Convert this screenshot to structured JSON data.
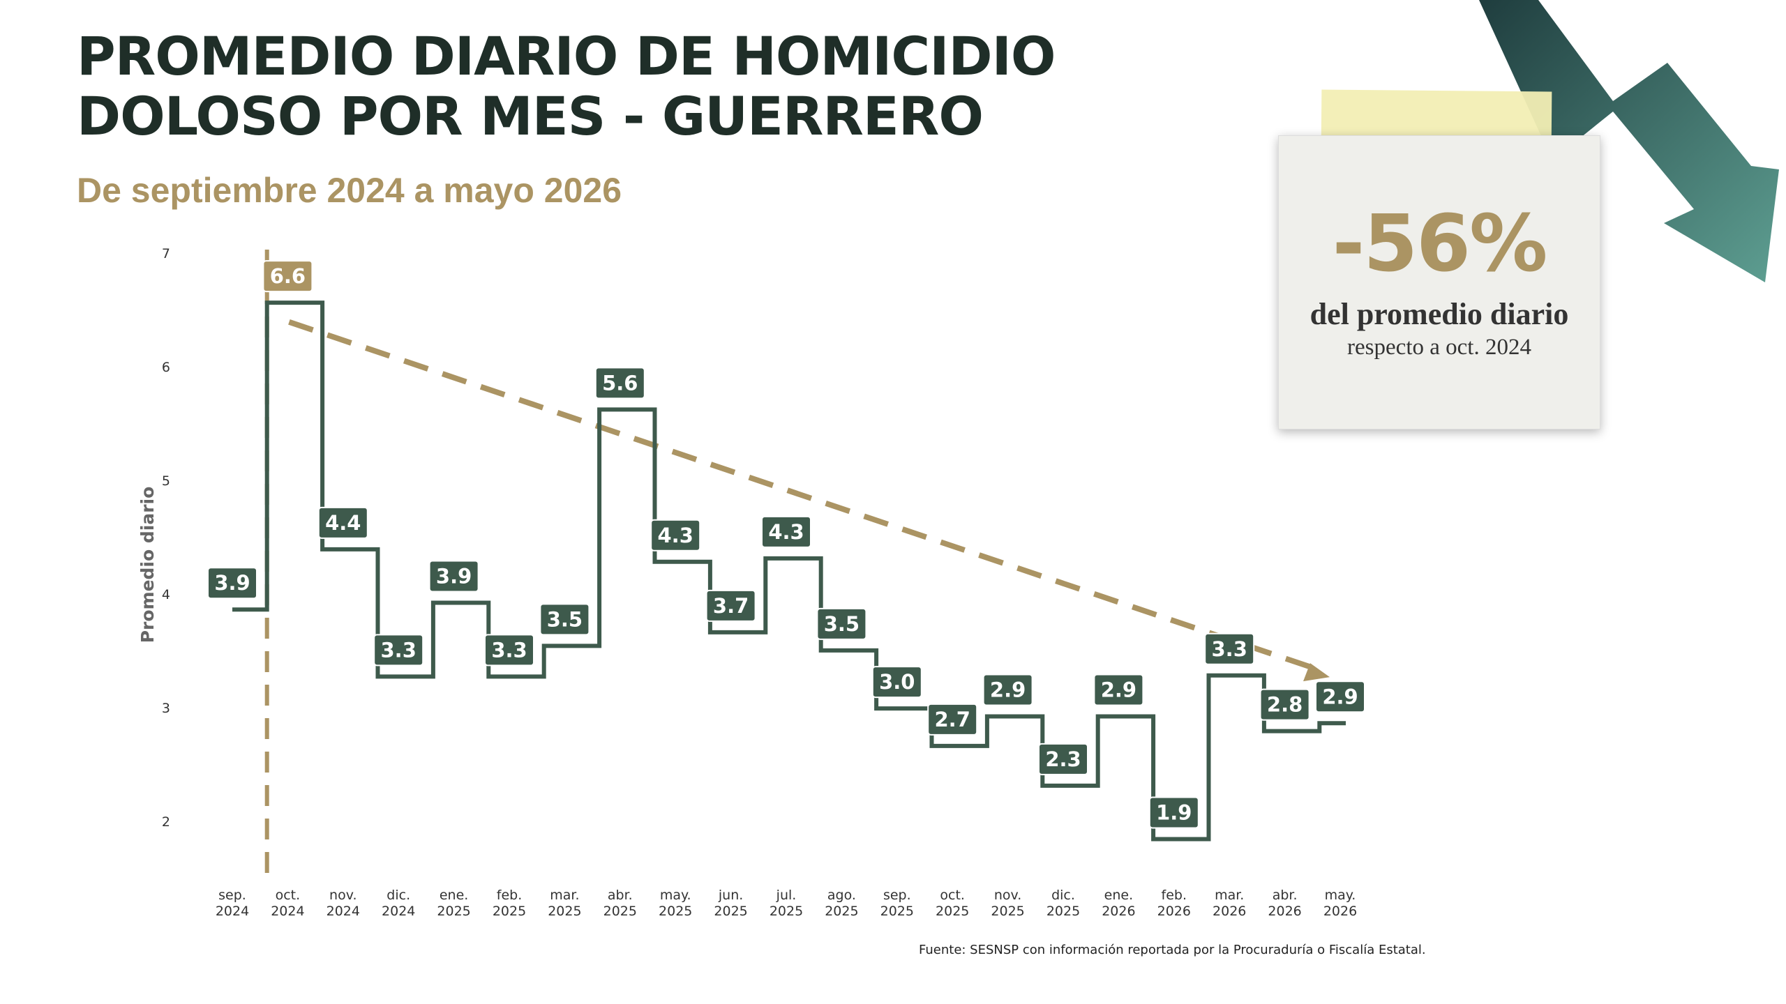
{
  "header": {
    "title_line1": "PROMEDIO DIARIO DE HOMICIDIO",
    "title_line2": "DOLOSO POR MES - GUERRERO",
    "subtitle": "De septiembre 2024 a mayo 2026"
  },
  "note": {
    "percent": "-56%",
    "line1": "del promedio diario",
    "line2": "respecto a oct. 2024"
  },
  "footer": {
    "source": "Fuente: SESNSP con información reportada por la Procuraduría o Fiscalía Estatal."
  },
  "colors": {
    "line": "#3e5a4c",
    "label_bg": "#3e5a4c",
    "highlight_bg": "#ab9463",
    "trend": "#ab9463",
    "arrow_dark": "#1f3d3e",
    "arrow_light": "#5e9f92"
  },
  "chart_data": {
    "type": "line",
    "ylabel": "Promedio diario",
    "ylim": [
      1.7,
      7
    ],
    "yticks": [
      "2",
      "3",
      "4",
      "5",
      "6",
      "7"
    ],
    "categories": [
      [
        "sep.",
        "2024"
      ],
      [
        "oct.",
        "2024"
      ],
      [
        "nov.",
        "2024"
      ],
      [
        "dic.",
        "2024"
      ],
      [
        "ene.",
        "2025"
      ],
      [
        "feb.",
        "2025"
      ],
      [
        "mar.",
        "2025"
      ],
      [
        "abr.",
        "2025"
      ],
      [
        "may.",
        "2025"
      ],
      [
        "jun.",
        "2025"
      ],
      [
        "jul.",
        "2025"
      ],
      [
        "ago.",
        "2025"
      ],
      [
        "sep.",
        "2025"
      ],
      [
        "oct.",
        "2025"
      ],
      [
        "nov.",
        "2025"
      ],
      [
        "dic.",
        "2025"
      ],
      [
        "ene.",
        "2026"
      ],
      [
        "feb.",
        "2026"
      ],
      [
        "mar.",
        "2026"
      ],
      [
        "abr.",
        "2026"
      ],
      [
        "may.",
        "2026"
      ]
    ],
    "series": [
      {
        "values": [
          3.87,
          6.57,
          4.4,
          3.28,
          3.93,
          3.28,
          3.55,
          5.63,
          4.29,
          3.67,
          4.32,
          3.51,
          3.0,
          2.67,
          2.93,
          2.32,
          2.93,
          1.85,
          3.29,
          2.8,
          2.87
        ],
        "labels": [
          "3.9",
          "6.6",
          "4.4",
          "3.3",
          "3.9",
          "3.3",
          "3.5",
          "5.6",
          "4.3",
          "3.7",
          "4.3",
          "3.5",
          "3.0",
          "2.7",
          "2.9",
          "2.3",
          "2.9",
          "1.9",
          "3.3",
          "2.8",
          "2.9"
        ]
      }
    ],
    "highlight_index": 1,
    "trend": {
      "from": [
        "oct. 2024",
        6.4
      ],
      "to": [
        "may. 2026",
        3.3
      ]
    },
    "grid": false,
    "legend": "none"
  }
}
